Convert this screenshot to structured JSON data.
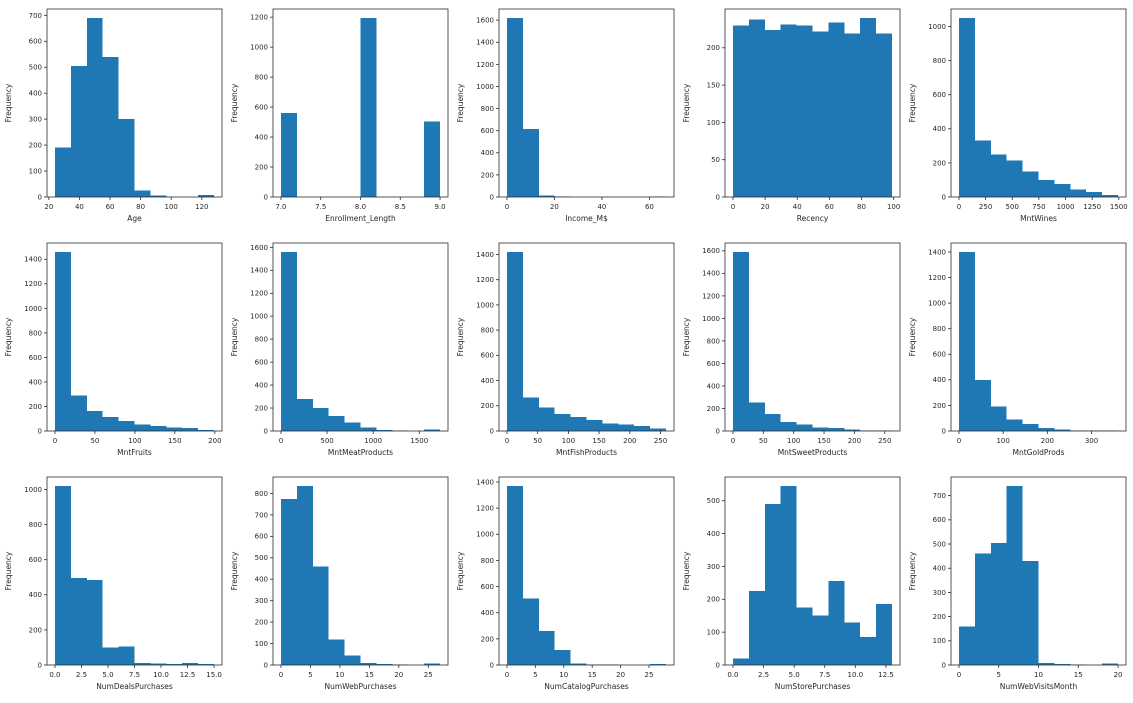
{
  "figure": {
    "background": "#ffffff",
    "bar_color": "#1f77b4",
    "axis_color": "#2b2b2b",
    "text_color": "#262626",
    "shared_ylabel": "Frequency",
    "grid": "off",
    "legend": "none",
    "rows": 3,
    "cols": 5
  },
  "chart_data": [
    {
      "type": "bar",
      "kind": "histogram",
      "xlabel": "Age",
      "ylabel": "Frequency",
      "title": "",
      "bin_range": [
        24,
        128
      ],
      "values": [
        190,
        505,
        690,
        540,
        300,
        25,
        5,
        0,
        0,
        8
      ],
      "xtick_vals": [
        20,
        40,
        60,
        80,
        100,
        120
      ],
      "xtick_labels": [
        "20",
        "40",
        "60",
        "80",
        "100",
        "120"
      ],
      "ytick_vals": [
        0,
        100,
        200,
        300,
        400,
        500,
        600,
        700
      ]
    },
    {
      "type": "bar",
      "kind": "histogram",
      "xlabel": "Enrollment_Length",
      "ylabel": "Frequency",
      "title": "",
      "bin_range": [
        7.0,
        9.0
      ],
      "values": [
        560,
        0,
        0,
        0,
        0,
        1195,
        0,
        0,
        0,
        505
      ],
      "xtick_vals": [
        7.0,
        7.5,
        8.0,
        8.5,
        9.0
      ],
      "xtick_labels": [
        "7.0",
        "7.5",
        "8.0",
        "8.5",
        "9.0"
      ],
      "ytick_vals": [
        0,
        200,
        400,
        600,
        800,
        1000,
        1200
      ]
    },
    {
      "type": "bar",
      "kind": "histogram",
      "xlabel": "Income_M$",
      "ylabel": "Frequency",
      "title": "",
      "bin_range": [
        0,
        67
      ],
      "values": [
        1620,
        615,
        15,
        5,
        0,
        0,
        0,
        0,
        0,
        5
      ],
      "xtick_vals": [
        0,
        20,
        40,
        60
      ],
      "xtick_labels": [
        "0",
        "20",
        "40",
        "60"
      ],
      "ytick_vals": [
        0,
        200,
        400,
        600,
        800,
        1000,
        1200,
        1400,
        1600
      ]
    },
    {
      "type": "bar",
      "kind": "histogram",
      "xlabel": "Recency",
      "ylabel": "Frequency",
      "title": "",
      "bin_range": [
        0,
        99
      ],
      "values": [
        230,
        238,
        224,
        231,
        230,
        222,
        234,
        219,
        240,
        219
      ],
      "xtick_vals": [
        0,
        20,
        40,
        60,
        80,
        100
      ],
      "xtick_labels": [
        "0",
        "20",
        "40",
        "60",
        "80",
        "100"
      ],
      "ytick_vals": [
        0,
        50,
        100,
        150,
        200
      ]
    },
    {
      "type": "bar",
      "kind": "histogram",
      "xlabel": "MntWines",
      "ylabel": "Frequency",
      "title": "",
      "bin_range": [
        0,
        1493
      ],
      "values": [
        1050,
        330,
        250,
        215,
        150,
        100,
        75,
        45,
        28,
        12
      ],
      "xtick_vals": [
        0,
        250,
        500,
        750,
        1000,
        1250,
        1500
      ],
      "xtick_labels": [
        "0",
        "250",
        "500",
        "750",
        "1000",
        "1250",
        "1500"
      ],
      "ytick_vals": [
        0,
        200,
        400,
        600,
        800,
        1000
      ]
    },
    {
      "type": "bar",
      "kind": "histogram",
      "xlabel": "MntFruits",
      "ylabel": "Frequency",
      "title": "",
      "bin_range": [
        0,
        199
      ],
      "values": [
        1460,
        290,
        165,
        115,
        80,
        55,
        40,
        30,
        25,
        10
      ],
      "xtick_vals": [
        0,
        50,
        100,
        150,
        200
      ],
      "xtick_labels": [
        "0",
        "50",
        "100",
        "150",
        "200"
      ],
      "ytick_vals": [
        0,
        200,
        400,
        600,
        800,
        1000,
        1200,
        1400
      ]
    },
    {
      "type": "bar",
      "kind": "histogram",
      "xlabel": "MntMeatProducts",
      "ylabel": "Frequency",
      "title": "",
      "bin_range": [
        0,
        1725
      ],
      "values": [
        1560,
        280,
        200,
        130,
        75,
        30,
        10,
        5,
        2,
        15
      ],
      "xtick_vals": [
        0,
        500,
        1000,
        1500
      ],
      "xtick_labels": [
        "0",
        "500",
        "1000",
        "1500"
      ],
      "ytick_vals": [
        0,
        200,
        400,
        600,
        800,
        1000,
        1200,
        1400,
        1600
      ]
    },
    {
      "type": "bar",
      "kind": "histogram",
      "xlabel": "MntFishProducts",
      "ylabel": "Frequency",
      "title": "",
      "bin_range": [
        0,
        259
      ],
      "values": [
        1420,
        265,
        185,
        135,
        110,
        88,
        60,
        50,
        38,
        18
      ],
      "xtick_vals": [
        0,
        50,
        100,
        150,
        200,
        250
      ],
      "xtick_labels": [
        "0",
        "50",
        "100",
        "150",
        "200",
        "250"
      ],
      "ytick_vals": [
        0,
        200,
        400,
        600,
        800,
        1000,
        1200,
        1400
      ]
    },
    {
      "type": "bar",
      "kind": "histogram",
      "xlabel": "MntSweetProducts",
      "ylabel": "Frequency",
      "title": "",
      "bin_range": [
        0,
        262
      ],
      "values": [
        1590,
        255,
        150,
        82,
        58,
        32,
        25,
        12,
        5,
        3
      ],
      "xtick_vals": [
        0,
        50,
        100,
        150,
        200,
        250
      ],
      "xtick_labels": [
        "0",
        "50",
        "100",
        "150",
        "200",
        "250"
      ],
      "ytick_vals": [
        0,
        200,
        400,
        600,
        800,
        1000,
        1200,
        1400,
        1600
      ]
    },
    {
      "type": "bar",
      "kind": "histogram",
      "xlabel": "MntGoldProds",
      "ylabel": "Frequency",
      "title": "",
      "bin_range": [
        0,
        360
      ],
      "values": [
        1400,
        400,
        190,
        90,
        55,
        25,
        10,
        5,
        3,
        2
      ],
      "xtick_vals": [
        0,
        100,
        200,
        300
      ],
      "xtick_labels": [
        "0",
        "100",
        "200",
        "300"
      ],
      "ytick_vals": [
        0,
        200,
        400,
        600,
        800,
        1000,
        1200,
        1400
      ]
    },
    {
      "type": "bar",
      "kind": "histogram",
      "xlabel": "NumDealsPurchases",
      "ylabel": "Frequency",
      "title": "",
      "bin_range": [
        0,
        15
      ],
      "values": [
        1020,
        495,
        485,
        100,
        105,
        12,
        8,
        5,
        10,
        5
      ],
      "xtick_vals": [
        0.0,
        2.5,
        5.0,
        7.5,
        10.0,
        12.5,
        15.0
      ],
      "xtick_labels": [
        "0.0",
        "2.5",
        "5.0",
        "7.5",
        "10.0",
        "12.5",
        "15.0"
      ],
      "ytick_vals": [
        0,
        200,
        400,
        600,
        800,
        1000
      ]
    },
    {
      "type": "bar",
      "kind": "histogram",
      "xlabel": "NumWebPurchases",
      "ylabel": "Frequency",
      "title": "",
      "bin_range": [
        0,
        27
      ],
      "values": [
        775,
        835,
        460,
        120,
        45,
        10,
        5,
        3,
        1,
        8
      ],
      "xtick_vals": [
        0,
        5,
        10,
        15,
        20,
        25
      ],
      "xtick_labels": [
        "0",
        "5",
        "10",
        "15",
        "20",
        "25"
      ],
      "ytick_vals": [
        0,
        100,
        200,
        300,
        400,
        500,
        600,
        700,
        800
      ]
    },
    {
      "type": "bar",
      "kind": "histogram",
      "xlabel": "NumCatalogPurchases",
      "ylabel": "Frequency",
      "title": "",
      "bin_range": [
        0,
        28
      ],
      "values": [
        1370,
        510,
        260,
        115,
        10,
        5,
        3,
        1,
        0,
        8
      ],
      "xtick_vals": [
        0,
        5,
        10,
        15,
        20,
        25
      ],
      "xtick_labels": [
        "0",
        "5",
        "10",
        "15",
        "20",
        "25"
      ],
      "ytick_vals": [
        0,
        200,
        400,
        600,
        800,
        1000,
        1200,
        1400
      ]
    },
    {
      "type": "bar",
      "kind": "histogram",
      "xlabel": "NumStorePurchases",
      "ylabel": "Frequency",
      "title": "",
      "bin_range": [
        0,
        13
      ],
      "values": [
        20,
        225,
        490,
        545,
        175,
        150,
        255,
        130,
        85,
        185
      ],
      "xtick_vals": [
        0.0,
        2.5,
        5.0,
        7.5,
        10.0,
        12.5
      ],
      "xtick_labels": [
        "0.0",
        "2.5",
        "5.0",
        "7.5",
        "10.0",
        "12.5"
      ],
      "ytick_vals": [
        0,
        100,
        200,
        300,
        400,
        500
      ]
    },
    {
      "type": "bar",
      "kind": "histogram",
      "xlabel": "NumWebVisitsMonth",
      "ylabel": "Frequency",
      "title": "",
      "bin_range": [
        0,
        20
      ],
      "values": [
        160,
        460,
        505,
        740,
        430,
        8,
        4,
        2,
        1,
        6
      ],
      "xtick_vals": [
        0,
        5,
        10,
        15,
        20
      ],
      "xtick_labels": [
        "0",
        "5",
        "10",
        "15",
        "20"
      ],
      "ytick_vals": [
        0,
        100,
        200,
        300,
        400,
        500,
        600,
        700
      ]
    }
  ]
}
